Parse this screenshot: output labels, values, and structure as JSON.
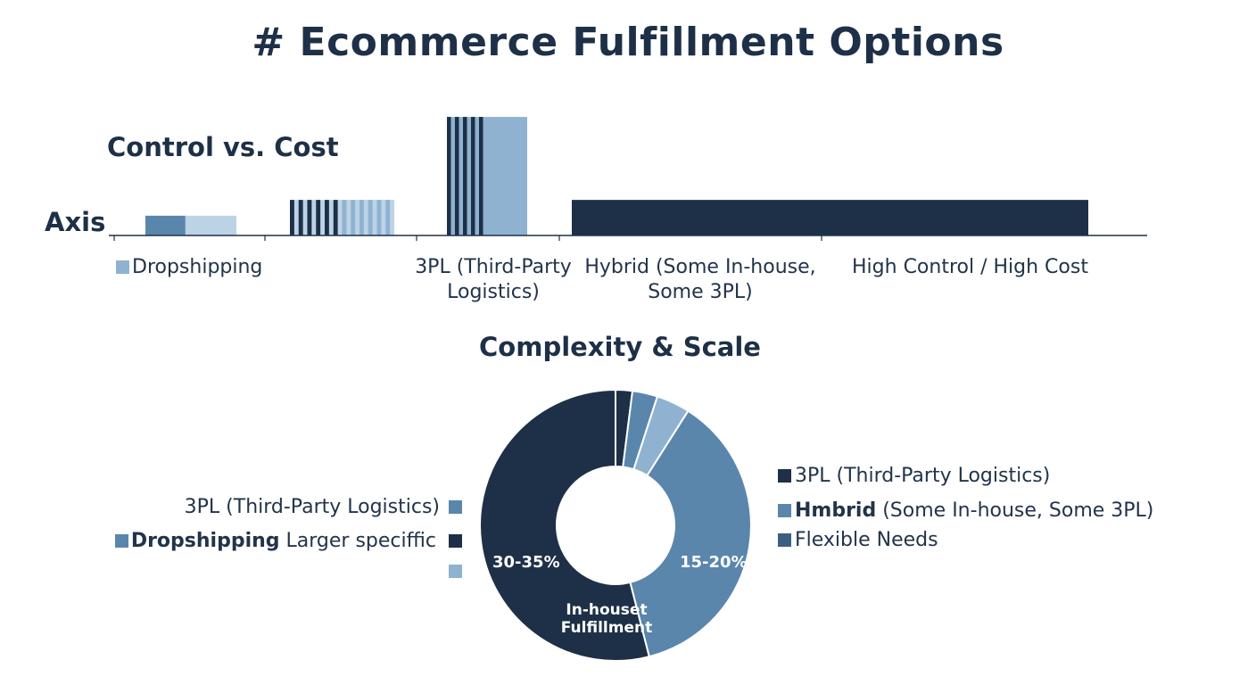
{
  "title": "# Ecommerce Fulfillment Options",
  "colors": {
    "navy": "#1e3047",
    "mid_blue": "#5a86ac",
    "light_blue": "#8fb2d1",
    "pale_blue": "#bcd3e6",
    "slate": "#3b5f82"
  },
  "chart_data": [
    {
      "type": "bar",
      "title": "Control vs. Cost",
      "ylabel": "Axis",
      "categories": [
        "Dropshipping",
        "",
        "3PL (Third-Party Logistics)",
        "Hybrid (Some In-house, Some 3PL)",
        "High Control / High Cost"
      ],
      "values": [
        1,
        1.8,
        6,
        1.8,
        1.8
      ],
      "ylim": [
        0,
        6.5
      ],
      "value_scale_note": "",
      "grid": false,
      "legend": "none"
    },
    {
      "type": "pie",
      "title": "Complexity & Scale",
      "slices": [
        {
          "label": "",
          "value": 2,
          "color": "#1e3047"
        },
        {
          "label": "",
          "value": 3,
          "color": "#5a86ac"
        },
        {
          "label": "",
          "value": 4,
          "color": "#8fb2d1"
        },
        {
          "label": "15-20%",
          "value": 37,
          "color": "#5a86ac"
        },
        {
          "label": "30-35%",
          "value": 54,
          "color": "#1e3047"
        }
      ],
      "center_label": "In-houset Fulfillment",
      "donut": true,
      "legend_left": [
        {
          "text": "3PL (Third-Party Logistics)",
          "color": "#5a86ac"
        },
        {
          "bold": "Dropshipping",
          "text": " Larger speciffic",
          "color": "#1e3047",
          "lead_color": "#5a86ac"
        },
        {
          "text": "",
          "color": "#8fb2d1"
        }
      ],
      "legend_right": [
        {
          "text": "3PL (Third-Party Logistics)",
          "color": "#1e3047"
        },
        {
          "bold": "Hmbrid",
          "text": " (Some In-house, Some 3PL)",
          "color": "#5a86ac"
        },
        {
          "text": "Flexible Needs",
          "color": "#3b5f82"
        }
      ]
    }
  ]
}
